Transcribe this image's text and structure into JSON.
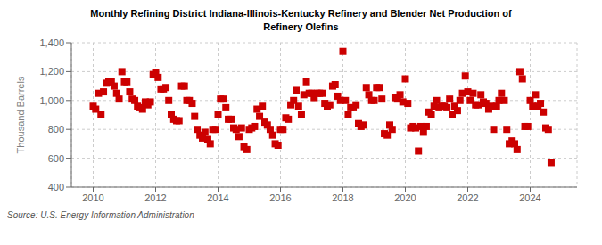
{
  "chart_data": {
    "type": "scatter",
    "title": "Monthly Refining District Indiana-Illinois-Kentucky Refinery and Blender Net Production of\nRefinery Olefins",
    "y_label": "Thousand Barrels",
    "annotations": [
      "Source: U.S. Energy Information Administration"
    ],
    "color": "#cc0000",
    "marker": "square",
    "grid": true,
    "xlim": [
      2009.3,
      2025.5
    ],
    "xticks": [
      2010,
      2012,
      2014,
      2016,
      2018,
      2020,
      2022,
      2024
    ],
    "ylim": [
      400,
      1400
    ],
    "yticks": [
      400,
      600,
      800,
      {
        "value": 1000,
        "label": "1,000"
      },
      {
        "value": 1200,
        "label": "1,200"
      },
      {
        "value": 1400,
        "label": "1,400"
      }
    ],
    "x": [
      2010.0,
      2010.08,
      2010.17,
      2010.25,
      2010.33,
      2010.42,
      2010.5,
      2010.58,
      2010.67,
      2010.75,
      2010.83,
      2010.92,
      2011.0,
      2011.08,
      2011.17,
      2011.25,
      2011.33,
      2011.42,
      2011.5,
      2011.58,
      2011.67,
      2011.75,
      2011.83,
      2011.92,
      2012.0,
      2012.08,
      2012.17,
      2012.25,
      2012.33,
      2012.42,
      2012.5,
      2012.58,
      2012.67,
      2012.75,
      2012.83,
      2012.92,
      2013.0,
      2013.08,
      2013.17,
      2013.25,
      2013.33,
      2013.42,
      2013.5,
      2013.58,
      2013.67,
      2013.75,
      2013.83,
      2013.92,
      2014.0,
      2014.08,
      2014.17,
      2014.25,
      2014.33,
      2014.42,
      2014.5,
      2014.58,
      2014.67,
      2014.75,
      2014.83,
      2014.92,
      2015.0,
      2015.08,
      2015.17,
      2015.25,
      2015.33,
      2015.42,
      2015.5,
      2015.58,
      2015.67,
      2015.75,
      2015.83,
      2015.92,
      2016.0,
      2016.08,
      2016.17,
      2016.25,
      2016.33,
      2016.42,
      2016.5,
      2016.58,
      2016.67,
      2016.75,
      2016.83,
      2016.92,
      2017.0,
      2017.08,
      2017.17,
      2017.25,
      2017.33,
      2017.42,
      2017.5,
      2017.58,
      2017.67,
      2017.75,
      2017.83,
      2017.92,
      2018.0,
      2018.08,
      2018.17,
      2018.25,
      2018.33,
      2018.42,
      2018.5,
      2018.58,
      2018.67,
      2018.75,
      2018.83,
      2018.92,
      2019.0,
      2019.08,
      2019.17,
      2019.25,
      2019.33,
      2019.42,
      2019.5,
      2019.58,
      2019.67,
      2019.75,
      2019.83,
      2019.92,
      2020.0,
      2020.08,
      2020.17,
      2020.25,
      2020.33,
      2020.42,
      2020.5,
      2020.58,
      2020.67,
      2020.75,
      2020.83,
      2020.92,
      2021.0,
      2021.08,
      2021.17,
      2021.25,
      2021.33,
      2021.42,
      2021.5,
      2021.58,
      2021.67,
      2021.75,
      2021.83,
      2021.92,
      2022.0,
      2022.08,
      2022.17,
      2022.25,
      2022.33,
      2022.42,
      2022.5,
      2022.58,
      2022.67,
      2022.75,
      2022.83,
      2022.92,
      2023.0,
      2023.08,
      2023.17,
      2023.25,
      2023.33,
      2023.42,
      2023.5,
      2023.58,
      2023.67,
      2023.75,
      2023.83,
      2023.92,
      2024.0,
      2024.08,
      2024.17,
      2024.25,
      2024.33,
      2024.42,
      2024.5,
      2024.58,
      2024.67
    ],
    "values": [
      960,
      940,
      1050,
      900,
      1060,
      1120,
      1130,
      1130,
      1100,
      1050,
      1010,
      1200,
      1130,
      1130,
      1060,
      1010,
      1000,
      960,
      950,
      940,
      990,
      970,
      990,
      1180,
      1190,
      1160,
      1080,
      1080,
      1090,
      1000,
      900,
      870,
      860,
      860,
      1100,
      1100,
      1000,
      1000,
      980,
      890,
      800,
      760,
      740,
      780,
      730,
      700,
      800,
      800,
      900,
      1010,
      1010,
      950,
      870,
      870,
      810,
      800,
      750,
      810,
      680,
      660,
      800,
      810,
      820,
      940,
      890,
      960,
      850,
      830,
      800,
      760,
      700,
      690,
      800,
      800,
      880,
      870,
      970,
      1000,
      1070,
      960,
      900,
      1040,
      1130,
      1050,
      1050,
      1020,
      1050,
      1050,
      1050,
      980,
      960,
      970,
      1100,
      1110,
      1030,
      1000,
      1340,
      1000,
      900,
      950,
      950,
      970,
      840,
      820,
      830,
      1090,
      1040,
      1000,
      1000,
      1090,
      1090,
      1010,
      770,
      760,
      830,
      800,
      1020,
      1010,
      1040,
      990,
      1150,
      980,
      810,
      820,
      810,
      650,
      820,
      780,
      820,
      920,
      900,
      960,
      1000,
      950,
      960,
      960,
      950,
      1010,
      900,
      960,
      930,
      1000,
      1050,
      1170,
      1060,
      1000,
      1050,
      970,
      970,
      1040,
      990,
      980,
      940,
      960,
      800,
      960,
      1000,
      1050,
      1000,
      800,
      700,
      720,
      700,
      660,
      1200,
      1150,
      820,
      820,
      1000,
      960,
      1040,
      960,
      980,
      920,
      810,
      800,
      570
    ]
  }
}
